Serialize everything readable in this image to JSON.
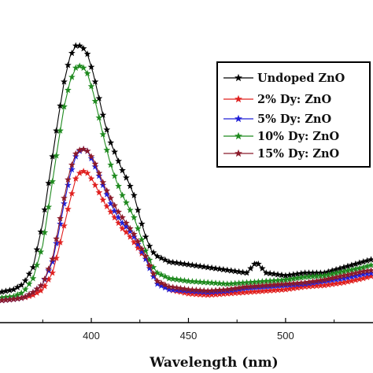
{
  "chart_data": {
    "type": "line",
    "title": "",
    "xlabel": "Wavelength (nm)",
    "ylabel": "",
    "xlim": [
      353,
      545
    ],
    "ylim": [
      0,
      100
    ],
    "x_ticks": [
      400,
      450,
      500
    ],
    "x_tick_labels": [
      "400",
      "450",
      "500"
    ],
    "legend_position": "right",
    "grid": false,
    "series": [
      {
        "name": "Undoped ZnO",
        "color": "#000000",
        "marker": "star",
        "points": [
          [
            353,
            3
          ],
          [
            360,
            4
          ],
          [
            365,
            6
          ],
          [
            370,
            12
          ],
          [
            375,
            28
          ],
          [
            380,
            52
          ],
          [
            383,
            66
          ],
          [
            386,
            79
          ],
          [
            389,
            88
          ],
          [
            392,
            92
          ],
          [
            395,
            92
          ],
          [
            398,
            89
          ],
          [
            401,
            82
          ],
          [
            404,
            73
          ],
          [
            407,
            64
          ],
          [
            410,
            57
          ],
          [
            413,
            52
          ],
          [
            416,
            47
          ],
          [
            419,
            43
          ],
          [
            422,
            38
          ],
          [
            425,
            30
          ],
          [
            428,
            23
          ],
          [
            431,
            18
          ],
          [
            434,
            16
          ],
          [
            440,
            14
          ],
          [
            450,
            13
          ],
          [
            460,
            12
          ],
          [
            470,
            11
          ],
          [
            480,
            10
          ],
          [
            485,
            14
          ],
          [
            490,
            10
          ],
          [
            500,
            9
          ],
          [
            510,
            10
          ],
          [
            520,
            10
          ],
          [
            530,
            12
          ],
          [
            540,
            14
          ],
          [
            545,
            15
          ]
        ]
      },
      {
        "name": "2% Dy: ZnO",
        "color": "#e0201f",
        "marker": "star",
        "points": [
          [
            353,
            0
          ],
          [
            360,
            0.5
          ],
          [
            365,
            1
          ],
          [
            370,
            2
          ],
          [
            375,
            4
          ],
          [
            380,
            10
          ],
          [
            383,
            18
          ],
          [
            386,
            27
          ],
          [
            389,
            36
          ],
          [
            392,
            44
          ],
          [
            395,
            47
          ],
          [
            398,
            46
          ],
          [
            401,
            43
          ],
          [
            404,
            39
          ],
          [
            407,
            35
          ],
          [
            410,
            32
          ],
          [
            413,
            29
          ],
          [
            416,
            26
          ],
          [
            419,
            24
          ],
          [
            422,
            21
          ],
          [
            425,
            18
          ],
          [
            428,
            15
          ],
          [
            431,
            11
          ],
          [
            434,
            7
          ],
          [
            440,
            4
          ],
          [
            450,
            2.5
          ],
          [
            460,
            2
          ],
          [
            470,
            2.5
          ],
          [
            480,
            3
          ],
          [
            490,
            3.5
          ],
          [
            500,
            4
          ],
          [
            510,
            5
          ],
          [
            520,
            5.5
          ],
          [
            530,
            6.5
          ],
          [
            540,
            8
          ],
          [
            545,
            9
          ]
        ]
      },
      {
        "name": "5% Dy: ZnO",
        "color": "#2020d8",
        "marker": "star",
        "points": [
          [
            353,
            0
          ],
          [
            360,
            0.5
          ],
          [
            365,
            1
          ],
          [
            370,
            3
          ],
          [
            375,
            6
          ],
          [
            380,
            14
          ],
          [
            383,
            24
          ],
          [
            386,
            35
          ],
          [
            389,
            45
          ],
          [
            392,
            52
          ],
          [
            395,
            55
          ],
          [
            398,
            54
          ],
          [
            401,
            50
          ],
          [
            404,
            45
          ],
          [
            407,
            40
          ],
          [
            410,
            35
          ],
          [
            413,
            31
          ],
          [
            416,
            28
          ],
          [
            419,
            26
          ],
          [
            422,
            23
          ],
          [
            425,
            19
          ],
          [
            428,
            15
          ],
          [
            431,
            10
          ],
          [
            434,
            6
          ],
          [
            440,
            4
          ],
          [
            450,
            3.5
          ],
          [
            460,
            3
          ],
          [
            470,
            3.5
          ],
          [
            480,
            4.5
          ],
          [
            490,
            5
          ],
          [
            500,
            5.5
          ],
          [
            510,
            6
          ],
          [
            520,
            7
          ],
          [
            530,
            8
          ],
          [
            540,
            9.5
          ],
          [
            545,
            10
          ]
        ]
      },
      {
        "name": "10% Dy: ZnO",
        "color": "#1f8a1f",
        "marker": "star",
        "points": [
          [
            353,
            1
          ],
          [
            360,
            1.5
          ],
          [
            365,
            3
          ],
          [
            370,
            8
          ],
          [
            375,
            20
          ],
          [
            380,
            43
          ],
          [
            383,
            57
          ],
          [
            386,
            70
          ],
          [
            389,
            79
          ],
          [
            392,
            84
          ],
          [
            395,
            85
          ],
          [
            398,
            82
          ],
          [
            401,
            75
          ],
          [
            404,
            66
          ],
          [
            407,
            57
          ],
          [
            410,
            49
          ],
          [
            413,
            43
          ],
          [
            416,
            38
          ],
          [
            419,
            34
          ],
          [
            422,
            30
          ],
          [
            425,
            24
          ],
          [
            428,
            18
          ],
          [
            431,
            13
          ],
          [
            434,
            10
          ],
          [
            440,
            8
          ],
          [
            450,
            7
          ],
          [
            460,
            6.5
          ],
          [
            470,
            6
          ],
          [
            480,
            6.5
          ],
          [
            490,
            7
          ],
          [
            500,
            7.5
          ],
          [
            510,
            8.5
          ],
          [
            520,
            9
          ],
          [
            530,
            10.5
          ],
          [
            540,
            12
          ],
          [
            545,
            13
          ]
        ]
      },
      {
        "name": "15% Dy: ZnO",
        "color": "#8b1a2a",
        "marker": "star",
        "points": [
          [
            353,
            0
          ],
          [
            360,
            0.5
          ],
          [
            365,
            1
          ],
          [
            370,
            3
          ],
          [
            375,
            6
          ],
          [
            380,
            15
          ],
          [
            383,
            26
          ],
          [
            386,
            37
          ],
          [
            389,
            47
          ],
          [
            392,
            53
          ],
          [
            395,
            55
          ],
          [
            398,
            54
          ],
          [
            401,
            51
          ],
          [
            404,
            46
          ],
          [
            407,
            41
          ],
          [
            410,
            37
          ],
          [
            413,
            33
          ],
          [
            416,
            30
          ],
          [
            419,
            27
          ],
          [
            422,
            24
          ],
          [
            425,
            20
          ],
          [
            428,
            16
          ],
          [
            431,
            11
          ],
          [
            434,
            7
          ],
          [
            440,
            5
          ],
          [
            450,
            4
          ],
          [
            460,
            3.5
          ],
          [
            470,
            4
          ],
          [
            480,
            5
          ],
          [
            490,
            5.5
          ],
          [
            500,
            6
          ],
          [
            510,
            6.5
          ],
          [
            520,
            7.5
          ],
          [
            530,
            9
          ],
          [
            540,
            10.5
          ],
          [
            545,
            11
          ]
        ]
      }
    ]
  }
}
